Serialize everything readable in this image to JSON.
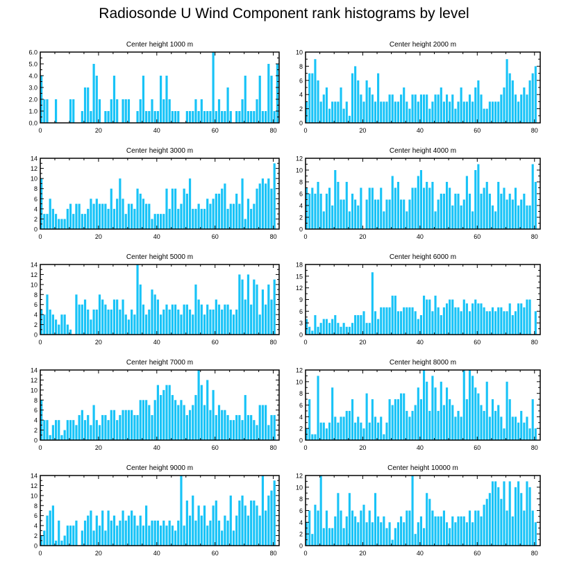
{
  "title": "Radiosonde U Wind Component rank histograms by level",
  "colors": {
    "bar": "#18c3f7",
    "axis": "#000000"
  },
  "chart_data": [
    {
      "type": "bar",
      "title": "Center height 1000 m",
      "xlim": [
        0,
        82
      ],
      "ylim": [
        0,
        6
      ],
      "ytick_step": 1,
      "ytick_format": "%.1f",
      "xticks": [
        0,
        20,
        40,
        60,
        80
      ],
      "values": [
        4,
        2,
        2,
        0,
        0,
        2,
        0,
        0,
        0,
        0,
        2,
        2,
        0,
        0,
        1,
        3,
        3,
        1,
        5,
        4,
        2,
        0,
        1,
        1,
        2,
        4,
        2,
        0,
        2,
        2,
        2,
        0,
        0,
        1,
        2,
        4,
        1,
        1,
        2,
        1,
        1,
        4,
        2,
        4,
        2,
        1,
        1,
        1,
        0,
        0,
        1,
        1,
        1,
        2,
        1,
        2,
        1,
        1,
        1,
        6,
        1,
        2,
        1,
        1,
        3,
        1,
        0,
        1,
        1,
        2,
        4,
        1,
        1,
        1,
        2,
        4,
        1,
        1,
        5,
        4,
        1,
        5
      ]
    },
    {
      "type": "bar",
      "title": "Center height 2000 m",
      "xlim": [
        0,
        82
      ],
      "ylim": [
        0,
        10
      ],
      "ytick_step": 2,
      "ytick_format": "%d",
      "xticks": [
        0,
        20,
        40,
        60,
        80
      ],
      "values": [
        3,
        7,
        7,
        9,
        6,
        3,
        4,
        5,
        2,
        3,
        3,
        3,
        5,
        2,
        3,
        1,
        7,
        8,
        6,
        4,
        3,
        6,
        5,
        4,
        3,
        7,
        3,
        3,
        3,
        4,
        4,
        3,
        3,
        4,
        5,
        3,
        2,
        4,
        4,
        3,
        4,
        4,
        4,
        2,
        3,
        4,
        4,
        5,
        3,
        4,
        3,
        4,
        2,
        3,
        5,
        3,
        3,
        4,
        3,
        5,
        6,
        4,
        2,
        2,
        3,
        3,
        3,
        3,
        4,
        5,
        9,
        7,
        6,
        4,
        3,
        4,
        5,
        4,
        6,
        7,
        8
      ]
    },
    {
      "type": "bar",
      "title": "Center height 3000 m",
      "xlim": [
        0,
        82
      ],
      "ylim": [
        0,
        14
      ],
      "ytick_step": 2,
      "ytick_format": "%d",
      "xticks": [
        0,
        20,
        40,
        60,
        80
      ],
      "values": [
        10,
        3,
        3,
        6,
        4,
        3,
        2,
        2,
        2,
        4,
        5,
        3,
        5,
        5,
        3,
        3,
        4,
        6,
        5,
        6,
        5,
        5,
        5,
        4,
        8,
        4,
        6,
        10,
        6,
        3,
        5,
        5,
        4,
        8,
        7,
        6,
        5,
        5,
        2,
        3,
        3,
        3,
        3,
        8,
        4,
        8,
        8,
        4,
        5,
        8,
        7,
        10,
        4,
        4,
        5,
        4,
        4,
        6,
        5,
        6,
        7,
        7,
        8,
        9,
        4,
        5,
        5,
        7,
        5,
        10,
        2,
        6,
        4,
        5,
        8,
        9,
        10,
        9,
        10,
        8,
        13
      ]
    },
    {
      "type": "bar",
      "title": "Center height 4000 m",
      "xlim": [
        0,
        82
      ],
      "ylim": [
        0,
        12
      ],
      "ytick_step": 2,
      "ytick_format": "%d",
      "xticks": [
        0,
        20,
        40,
        60,
        80
      ],
      "values": [
        7,
        6,
        7,
        6,
        8,
        6,
        3,
        6,
        7,
        4,
        10,
        8,
        5,
        5,
        8,
        3,
        6,
        5,
        4,
        7,
        0,
        5,
        7,
        7,
        5,
        5,
        7,
        3,
        5,
        5,
        9,
        7,
        8,
        5,
        5,
        3,
        5,
        7,
        7,
        9,
        10,
        7,
        8,
        7,
        8,
        3,
        5,
        6,
        6,
        8,
        7,
        4,
        6,
        6,
        4,
        5,
        9,
        6,
        3,
        10,
        11,
        6,
        7,
        8,
        6,
        4,
        3,
        8,
        6,
        7,
        5,
        6,
        5,
        7,
        4,
        5,
        6,
        4,
        4,
        11,
        8
      ]
    },
    {
      "type": "bar",
      "title": "Center height 5000 m",
      "xlim": [
        0,
        82
      ],
      "ylim": [
        0,
        14
      ],
      "ytick_step": 2,
      "ytick_format": "%d",
      "xticks": [
        0,
        20,
        40,
        60,
        80
      ],
      "values": [
        5,
        4,
        8,
        5,
        4,
        3,
        2,
        4,
        4,
        2,
        1,
        0,
        8,
        6,
        6,
        7,
        5,
        3,
        5,
        5,
        8,
        7,
        6,
        5,
        5,
        7,
        7,
        5,
        7,
        4,
        3,
        5,
        4,
        14,
        10,
        6,
        4,
        5,
        9,
        8,
        7,
        4,
        5,
        6,
        5,
        6,
        6,
        5,
        4,
        6,
        6,
        5,
        4,
        10,
        7,
        6,
        4,
        6,
        5,
        5,
        7,
        6,
        5,
        6,
        6,
        5,
        4,
        5,
        12,
        11,
        7,
        12,
        6,
        11,
        10,
        4,
        9,
        6,
        10,
        7,
        11
      ]
    },
    {
      "type": "bar",
      "title": "Center height 6000 m",
      "xlim": [
        0,
        82
      ],
      "ylim": [
        0,
        18
      ],
      "ytick_step": 3,
      "ytick_format": "%d",
      "xticks": [
        0,
        20,
        40,
        60,
        80
      ],
      "values": [
        4,
        2,
        1,
        5,
        2,
        3,
        4,
        4,
        3,
        4,
        5,
        3,
        2,
        3,
        2,
        2,
        3,
        5,
        5,
        5,
        6,
        3,
        3,
        16,
        6,
        4,
        7,
        7,
        7,
        7,
        10,
        10,
        6,
        6,
        7,
        7,
        7,
        7,
        6,
        4,
        5,
        10,
        9,
        9,
        6,
        10,
        7,
        5,
        7,
        8,
        9,
        9,
        7,
        7,
        6,
        9,
        8,
        6,
        8,
        9,
        8,
        8,
        7,
        6,
        6,
        7,
        6,
        7,
        7,
        6,
        6,
        8,
        5,
        6,
        8,
        8,
        7,
        9,
        9,
        0,
        6
      ]
    },
    {
      "type": "bar",
      "title": "Center height 7000 m",
      "xlim": [
        0,
        82
      ],
      "ylim": [
        0,
        14
      ],
      "ytick_step": 2,
      "ytick_format": "%d",
      "xticks": [
        0,
        20,
        40,
        60,
        80
      ],
      "values": [
        8,
        4,
        4,
        1,
        3,
        4,
        4,
        1,
        2,
        4,
        4,
        4,
        3,
        5,
        6,
        4,
        5,
        3,
        7,
        4,
        3,
        5,
        5,
        4,
        6,
        6,
        4,
        5,
        6,
        6,
        6,
        6,
        5,
        5,
        8,
        8,
        8,
        7,
        5,
        8,
        11,
        9,
        10,
        11,
        11,
        9,
        8,
        7,
        8,
        7,
        5,
        6,
        7,
        9,
        14,
        11,
        7,
        12,
        6,
        10,
        5,
        7,
        6,
        6,
        5,
        4,
        4,
        5,
        5,
        4,
        9,
        5,
        5,
        4,
        3,
        7,
        7,
        7,
        3,
        5,
        5
      ]
    },
    {
      "type": "bar",
      "title": "Center height 8000 m",
      "xlim": [
        0,
        82
      ],
      "ylim": [
        0,
        12
      ],
      "ytick_step": 2,
      "ytick_format": "%d",
      "xticks": [
        0,
        20,
        40,
        60,
        80
      ],
      "values": [
        2,
        7,
        1,
        1,
        11,
        3,
        3,
        2,
        3,
        9,
        4,
        3,
        4,
        4,
        5,
        5,
        7,
        3,
        4,
        3,
        2,
        8,
        3,
        7,
        4,
        3,
        4,
        1,
        3,
        7,
        6,
        7,
        7,
        8,
        8,
        5,
        4,
        5,
        6,
        9,
        7,
        12,
        10,
        5,
        11,
        9,
        5,
        10,
        6,
        9,
        7,
        6,
        4,
        5,
        4,
        12,
        7,
        12,
        11,
        9,
        8,
        6,
        5,
        10,
        4,
        7,
        5,
        6,
        4,
        2,
        10,
        7,
        4,
        4,
        3,
        5,
        3,
        4,
        2,
        7,
        2
      ]
    },
    {
      "type": "bar",
      "title": "Center height 9000 m",
      "xlim": [
        0,
        82
      ],
      "ylim": [
        0,
        14
      ],
      "ytick_step": 2,
      "ytick_format": "%d",
      "xticks": [
        0,
        20,
        40,
        60,
        80
      ],
      "values": [
        2,
        3,
        6,
        7,
        8,
        1,
        5,
        1,
        2,
        4,
        4,
        4,
        5,
        0,
        3,
        5,
        6,
        7,
        3,
        6,
        4,
        7,
        3,
        7,
        5,
        6,
        4,
        5,
        7,
        5,
        6,
        7,
        6,
        4,
        6,
        4,
        8,
        4,
        5,
        5,
        5,
        4,
        5,
        4,
        5,
        4,
        3,
        5,
        14,
        4,
        9,
        6,
        10,
        5,
        8,
        6,
        8,
        4,
        5,
        8,
        9,
        5,
        3,
        6,
        5,
        10,
        3,
        6,
        9,
        10,
        8,
        6,
        9,
        9,
        8,
        6,
        14,
        7,
        10,
        11,
        13
      ]
    },
    {
      "type": "bar",
      "title": "Center height 10000 m",
      "xlim": [
        0,
        82
      ],
      "ylim": [
        0,
        12
      ],
      "ytick_step": 2,
      "ytick_format": "%d",
      "xticks": [
        0,
        20,
        40,
        60,
        80
      ],
      "values": [
        4,
        6,
        2,
        7,
        6,
        12,
        3,
        6,
        3,
        3,
        5,
        9,
        6,
        3,
        5,
        9,
        6,
        5,
        4,
        6,
        7,
        4,
        6,
        4,
        9,
        5,
        4,
        5,
        3,
        4,
        1,
        3,
        4,
        5,
        4,
        6,
        6,
        12,
        2,
        4,
        5,
        3,
        9,
        8,
        6,
        5,
        5,
        5,
        6,
        4,
        3,
        5,
        4,
        5,
        5,
        5,
        4,
        6,
        4,
        6,
        6,
        5,
        7,
        8,
        9,
        11,
        11,
        10,
        8,
        11,
        6,
        11,
        5,
        10,
        11,
        9,
        6,
        11,
        10,
        6,
        4
      ]
    }
  ]
}
